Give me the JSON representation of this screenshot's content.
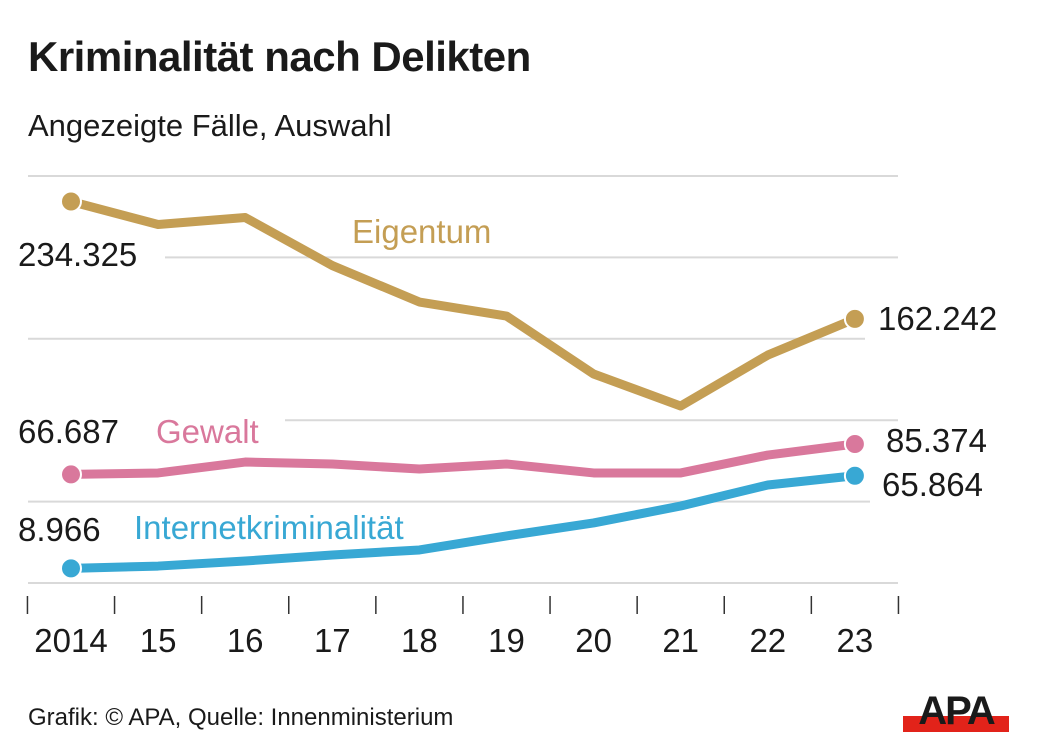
{
  "header": {
    "title": "Kriminalität nach Delikten",
    "subtitle": "Angezeigte Fälle, Auswahl"
  },
  "footer": {
    "credit": "Grafik: © APA, Quelle: Innenministerium",
    "logo_text": "APA",
    "logo_colors": {
      "text": "#1a1a1a",
      "bar": "#e2231a"
    }
  },
  "chart_data": {
    "type": "line",
    "title": "Kriminalität nach Delikten",
    "subtitle": "Angezeigte Fälle, Auswahl",
    "xlabel": "",
    "ylabel": "",
    "x": [
      "2014",
      "15",
      "16",
      "17",
      "18",
      "19",
      "20",
      "21",
      "22",
      "23"
    ],
    "ylim": [
      0,
      250000
    ],
    "yticks": [
      0,
      50000,
      100000,
      150000,
      200000,
      250000
    ],
    "grid": true,
    "legend": "inline-labels",
    "series": [
      {
        "name": "Eigentum",
        "color": "#c49e54",
        "values": [
          234325,
          220200,
          224500,
          195000,
          172600,
          164000,
          128400,
          108700,
          140000,
          162242
        ],
        "start_label": "234.325",
        "end_label": "162.242"
      },
      {
        "name": "Gewalt",
        "color": "#d9789c",
        "values": [
          66687,
          67600,
          74300,
          73100,
          70000,
          73100,
          67600,
          67600,
          78600,
          85374
        ],
        "start_label": "66.687",
        "end_label": "85.374"
      },
      {
        "name": "Internetkriminalität",
        "color": "#38a8d4",
        "values": [
          8966,
          10400,
          13500,
          17200,
          20300,
          28900,
          36900,
          47300,
          60200,
          65864
        ],
        "start_label": "8.966",
        "end_label": "65.864"
      }
    ]
  }
}
